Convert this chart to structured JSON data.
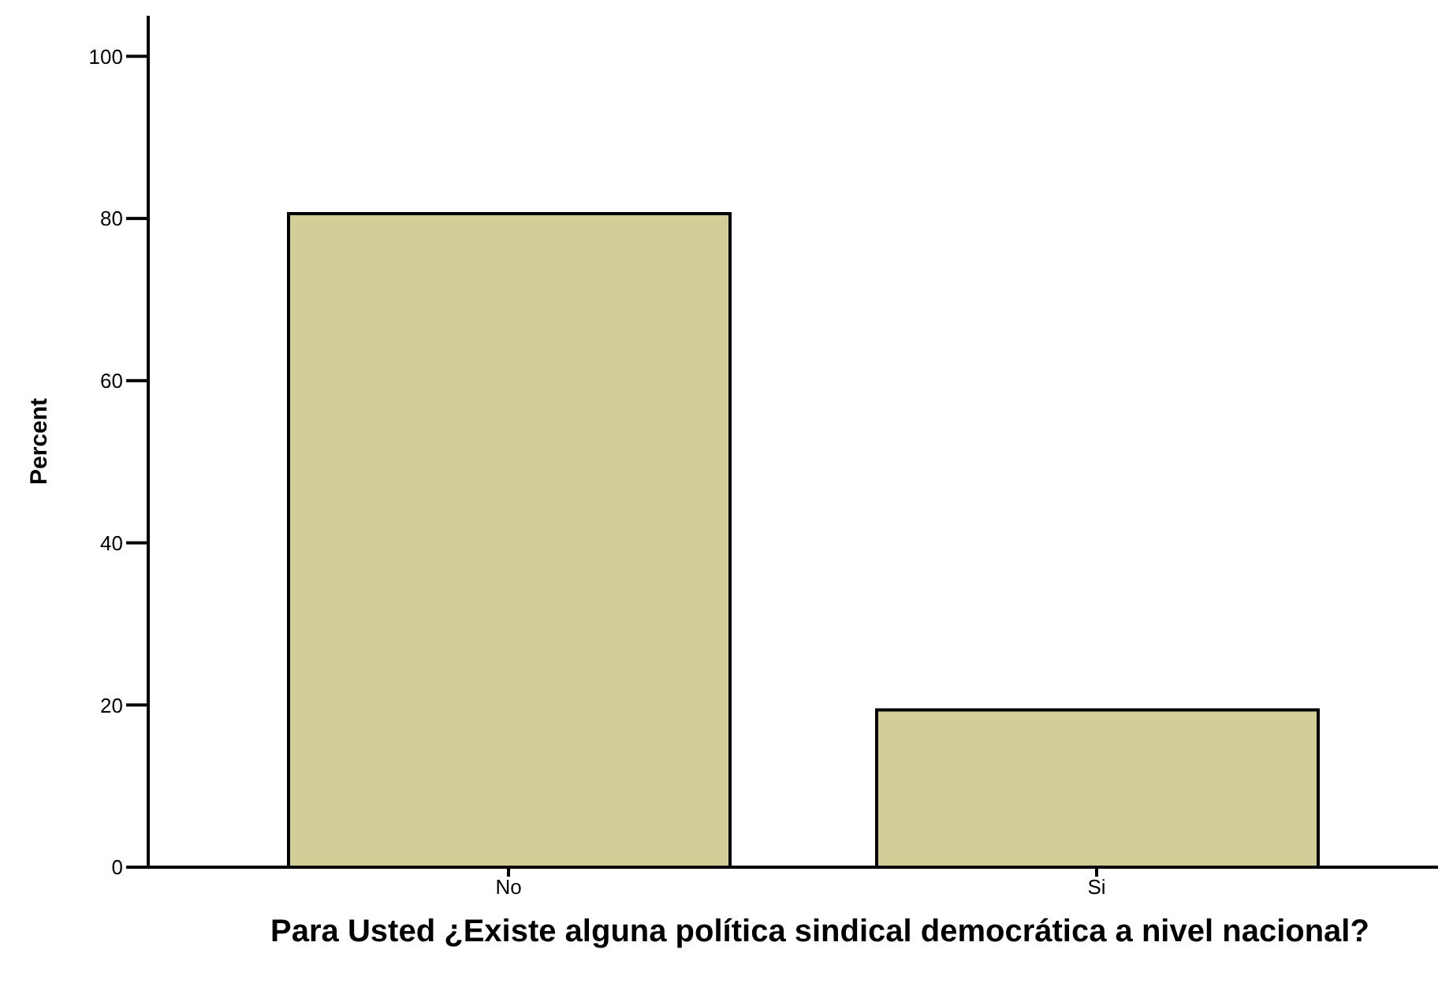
{
  "chart_data": {
    "type": "bar",
    "xlabel": "Para Usted ¿Existe alguna política sindical democrática a nivel nacional?",
    "ylabel": "Percent",
    "categories": [
      "No",
      "Si"
    ],
    "values": [
      80.6,
      19.4
    ],
    "color": "#d3ce98",
    "ylim": [
      0,
      105
    ],
    "yticks": [
      0,
      20,
      40,
      60,
      80,
      100
    ],
    "grid": false,
    "legend": false
  }
}
